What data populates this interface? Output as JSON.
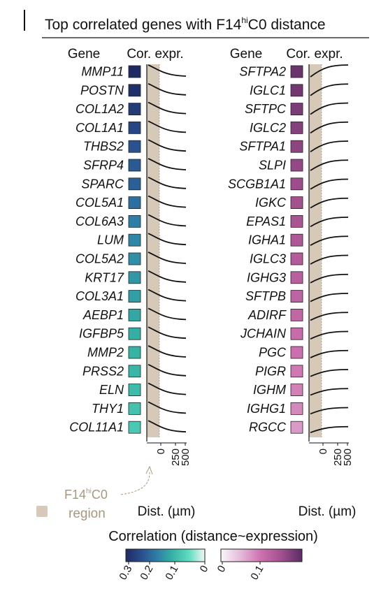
{
  "chart_data": {
    "type": "heatmap",
    "title": {
      "prefix": "Top correlated genes with F14",
      "sup": "hi",
      "suffix": "C0 distance"
    },
    "panels": [
      {
        "id": "negative",
        "header_gene": "Gene",
        "header_cor": "Cor. expr.",
        "genes": [
          "MMP11",
          "POSTN",
          "COL1A2",
          "COL1A1",
          "THBS2",
          "SFRP4",
          "SPARC",
          "COL5A1",
          "COL6A3",
          "LUM",
          "COL5A2",
          "KRT17",
          "COL3A1",
          "AEBP1",
          "IGFBP5",
          "MMP2",
          "PRSS2",
          "ELN",
          "THY1",
          "COL11A1"
        ],
        "correlation": [
          -0.33,
          -0.32,
          -0.3,
          -0.28,
          -0.26,
          -0.25,
          -0.24,
          -0.22,
          -0.2,
          -0.19,
          -0.18,
          -0.17,
          -0.16,
          -0.15,
          -0.14,
          -0.135,
          -0.13,
          -0.12,
          -0.11,
          -0.1
        ],
        "curve": "decreasing",
        "x_ticks": [
          "0",
          "250",
          "500"
        ],
        "xlabel": "Dist. (µm)"
      },
      {
        "id": "positive",
        "header_gene": "Gene",
        "header_cor": "Cor. expr.",
        "genes": [
          "SFTPA2",
          "IGLC1",
          "SFTPC",
          "IGLC2",
          "SFTPA1",
          "SLPI",
          "SCGB1A1",
          "IGKC",
          "EPAS1",
          "IGHA1",
          "IGLC3",
          "IGHG3",
          "SFTPB",
          "ADIRF",
          "JCHAIN",
          "PGC",
          "PIGR",
          "IGHM",
          "IGHG1",
          "RGCC"
        ],
        "correlation": [
          0.16,
          0.155,
          0.15,
          0.145,
          0.14,
          0.135,
          0.13,
          0.125,
          0.12,
          0.115,
          0.11,
          0.105,
          0.1,
          0.095,
          0.09,
          0.085,
          0.08,
          0.075,
          0.07,
          0.06
        ],
        "curve": "increasing",
        "x_ticks": [
          "0",
          "250",
          "500"
        ],
        "xlabel": "Dist. (µm)"
      }
    ],
    "region_annotation": {
      "prefix": "F14",
      "sup": "hi",
      "suffix": "C0",
      "line2": "region",
      "legend_label": "region"
    },
    "colorbar": {
      "title": "Correlation (distance~expression)",
      "negative_ticks": [
        "0.3",
        "0.2",
        "0.1",
        "0"
      ],
      "negative_range": [
        -0.33,
        0
      ],
      "positive_ticks": [
        "0",
        "0.1"
      ],
      "positive_range": [
        0,
        0.17
      ]
    },
    "colors": {
      "negative_scale": [
        "#f2f8f3",
        "#5fdcc0",
        "#37b5a6",
        "#2e7fa6",
        "#2a4f8e",
        "#1e2b63"
      ],
      "positive_scale": [
        "#fbf6fb",
        "#e3b8d8",
        "#cc6fae",
        "#a14f8e",
        "#5a2c62"
      ],
      "region": "#d7c9b7",
      "region_text": "#a8977f",
      "line": "#111111"
    }
  }
}
